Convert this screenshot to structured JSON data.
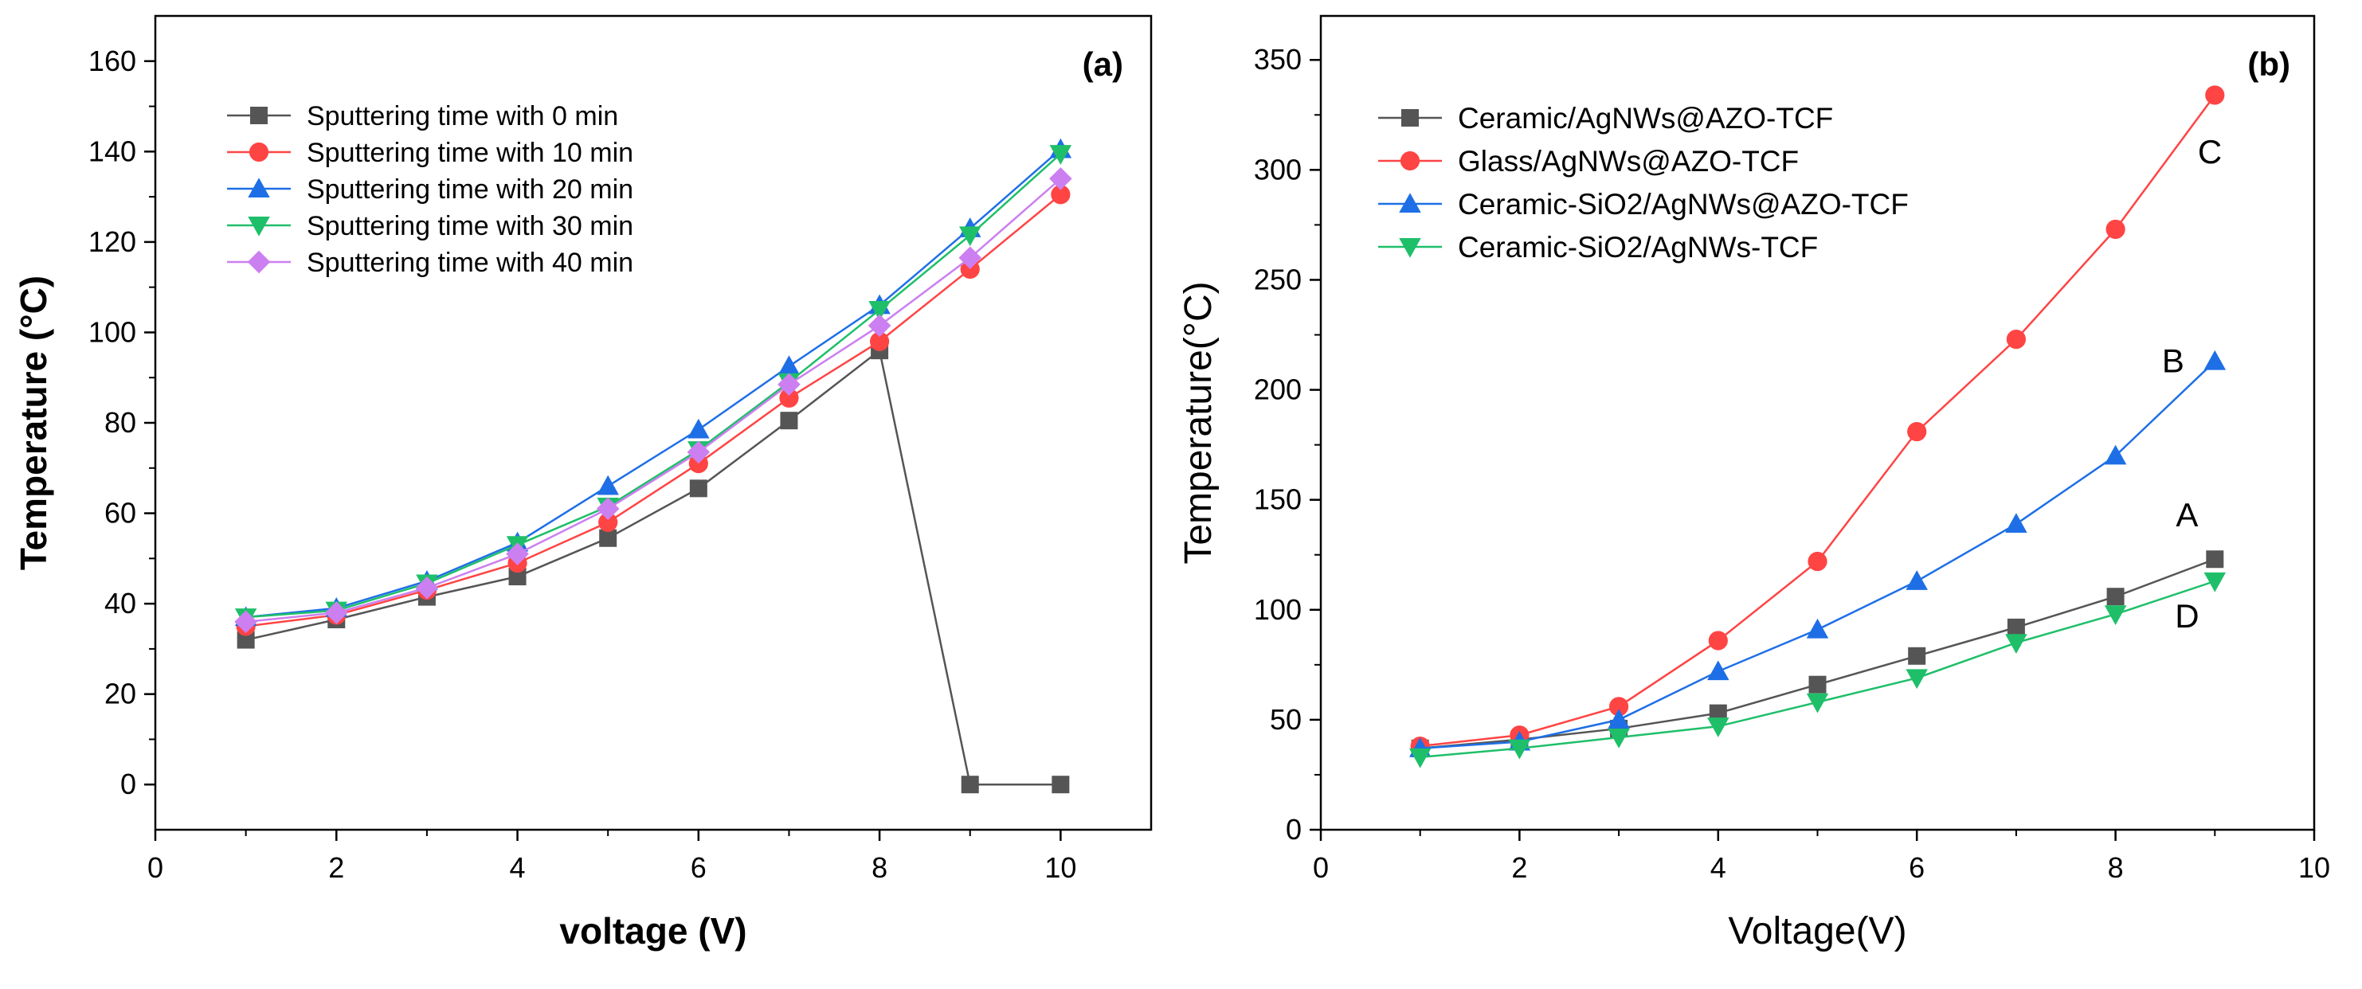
{
  "chart_data": [
    {
      "type": "line",
      "panel_label": "(a)",
      "title": "",
      "xlabel": "voltage (V)",
      "ylabel": "Temperature (°C)",
      "xlim": [
        0,
        11
      ],
      "ylim": [
        -10,
        170
      ],
      "xticks": [
        0,
        2,
        4,
        6,
        8,
        10
      ],
      "yticks": [
        0,
        20,
        40,
        60,
        80,
        100,
        120,
        140,
        160
      ],
      "grid": false,
      "legend_position": "top-left",
      "x": [
        1,
        2,
        3,
        4,
        5,
        6,
        7,
        8,
        9,
        10
      ],
      "series": [
        {
          "name": "Sputtering time with 0 min",
          "color": "#555555",
          "marker": "square",
          "values": [
            32,
            36.5,
            41.5,
            46,
            54.5,
            65.5,
            80.5,
            96,
            0,
            0
          ]
        },
        {
          "name": "Sputtering time with 10 min",
          "color": "#ff4444",
          "marker": "circle",
          "values": [
            35,
            37.5,
            43,
            49,
            58,
            71,
            85.5,
            98,
            114,
            130.5
          ]
        },
        {
          "name": "Sputtering time with 20 min",
          "color": "#1e6fe6",
          "marker": "triangle-up",
          "values": [
            37,
            39,
            45,
            53.5,
            66,
            78.5,
            92.5,
            106,
            123,
            140.5
          ]
        },
        {
          "name": "Sputtering time with 30 min",
          "color": "#1fbf6a",
          "marker": "triangle-down",
          "values": [
            37,
            38.5,
            44.5,
            53,
            61.5,
            74,
            89,
            105,
            121.5,
            139.5
          ]
        },
        {
          "name": "Sputtering time with 40 min",
          "color": "#cc7ff0",
          "marker": "diamond",
          "values": [
            36,
            38,
            43.5,
            51,
            61,
            73.5,
            88.5,
            101.5,
            116.5,
            134
          ]
        }
      ]
    },
    {
      "type": "line",
      "panel_label": "(b)",
      "title": "",
      "xlabel": "Voltage(V)",
      "ylabel": "Temperature(°C)",
      "xlim": [
        0,
        10
      ],
      "ylim": [
        0,
        370
      ],
      "xticks": [
        0,
        2,
        4,
        6,
        8,
        10
      ],
      "yticks": [
        0,
        50,
        100,
        150,
        200,
        250,
        300,
        350
      ],
      "grid": false,
      "legend_position": "top-left",
      "x": [
        1,
        2,
        3,
        4,
        5,
        6,
        7,
        8,
        9
      ],
      "series": [
        {
          "name": "Ceramic/AgNWs@AZO-TCF",
          "color": "#555555",
          "marker": "square",
          "curve_label": "A",
          "values": [
            37,
            41,
            46,
            53,
            66,
            79,
            92,
            106,
            123
          ]
        },
        {
          "name": "Glass/AgNWs@AZO-TCF",
          "color": "#ff4444",
          "marker": "circle",
          "curve_label": "C",
          "values": [
            38,
            43,
            56,
            86,
            122,
            181,
            223,
            273,
            334
          ]
        },
        {
          "name": "Ceramic-SiO2/AgNWs@AZO-TCF",
          "color": "#1e6fe6",
          "marker": "triangle-up",
          "curve_label": "B",
          "values": [
            37,
            40,
            50,
            72,
            91,
            113,
            139,
            170,
            213
          ]
        },
        {
          "name": "Ceramic-SiO2/AgNWs-TCF",
          "color": "#1fbf6a",
          "marker": "triangle-down",
          "curve_label": "D",
          "values": [
            33,
            37,
            42,
            47,
            58,
            69,
            85,
            98,
            113
          ]
        }
      ]
    }
  ]
}
